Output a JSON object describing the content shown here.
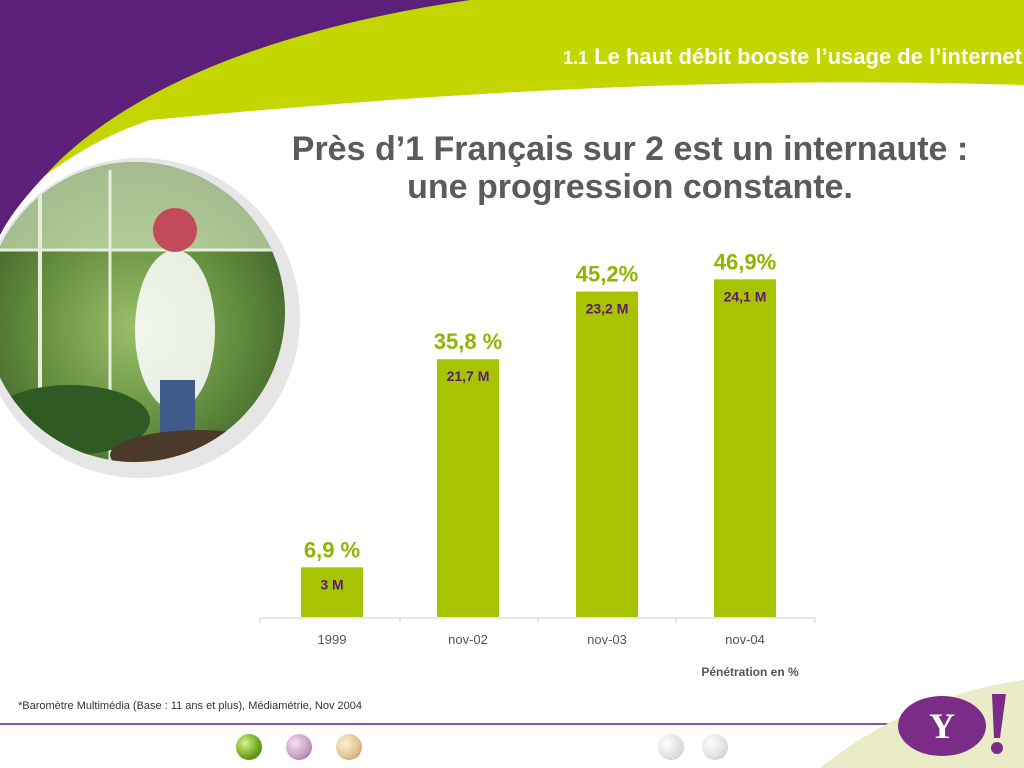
{
  "header": {
    "number": "1.1",
    "title": "Le haut débit booste l’usage de l’internet"
  },
  "slide_title": {
    "line1": "Près d’1 Français sur 2 est un internaute :",
    "line2": "une progression constante."
  },
  "chart_data": {
    "type": "bar",
    "categories": [
      "1999",
      "nov-02",
      "nov-03",
      "nov-04"
    ],
    "values": [
      6.9,
      35.8,
      45.2,
      46.9
    ],
    "percent_labels": [
      "6,9 %",
      "35,8 %",
      "45,2%",
      "46,9%"
    ],
    "users_labels": [
      "3 M",
      "21,7 M",
      "23,2 M",
      "24,1 M"
    ],
    "xlabel": "Pénétration en %",
    "ylabel": "",
    "ylim": [
      0,
      50
    ],
    "grid": false,
    "colors": {
      "bar": "#a8c400",
      "percent_text": "#8db600",
      "users_text": "#5a1a6e"
    }
  },
  "footnote": "*Baromètre Multimédia  (Base : 11 ans et plus), Médiamétrie, Nov 2004",
  "colors": {
    "purple": "#5c1f7a",
    "lime": "#c3d600",
    "text_gray": "#5b5b5b"
  },
  "logo": {
    "text": "Y!"
  },
  "icons": [
    "green-dot-icon",
    "pink-dot-icon",
    "beige-dot-icon",
    "back-arrow-icon",
    "forward-arrow-icon"
  ]
}
